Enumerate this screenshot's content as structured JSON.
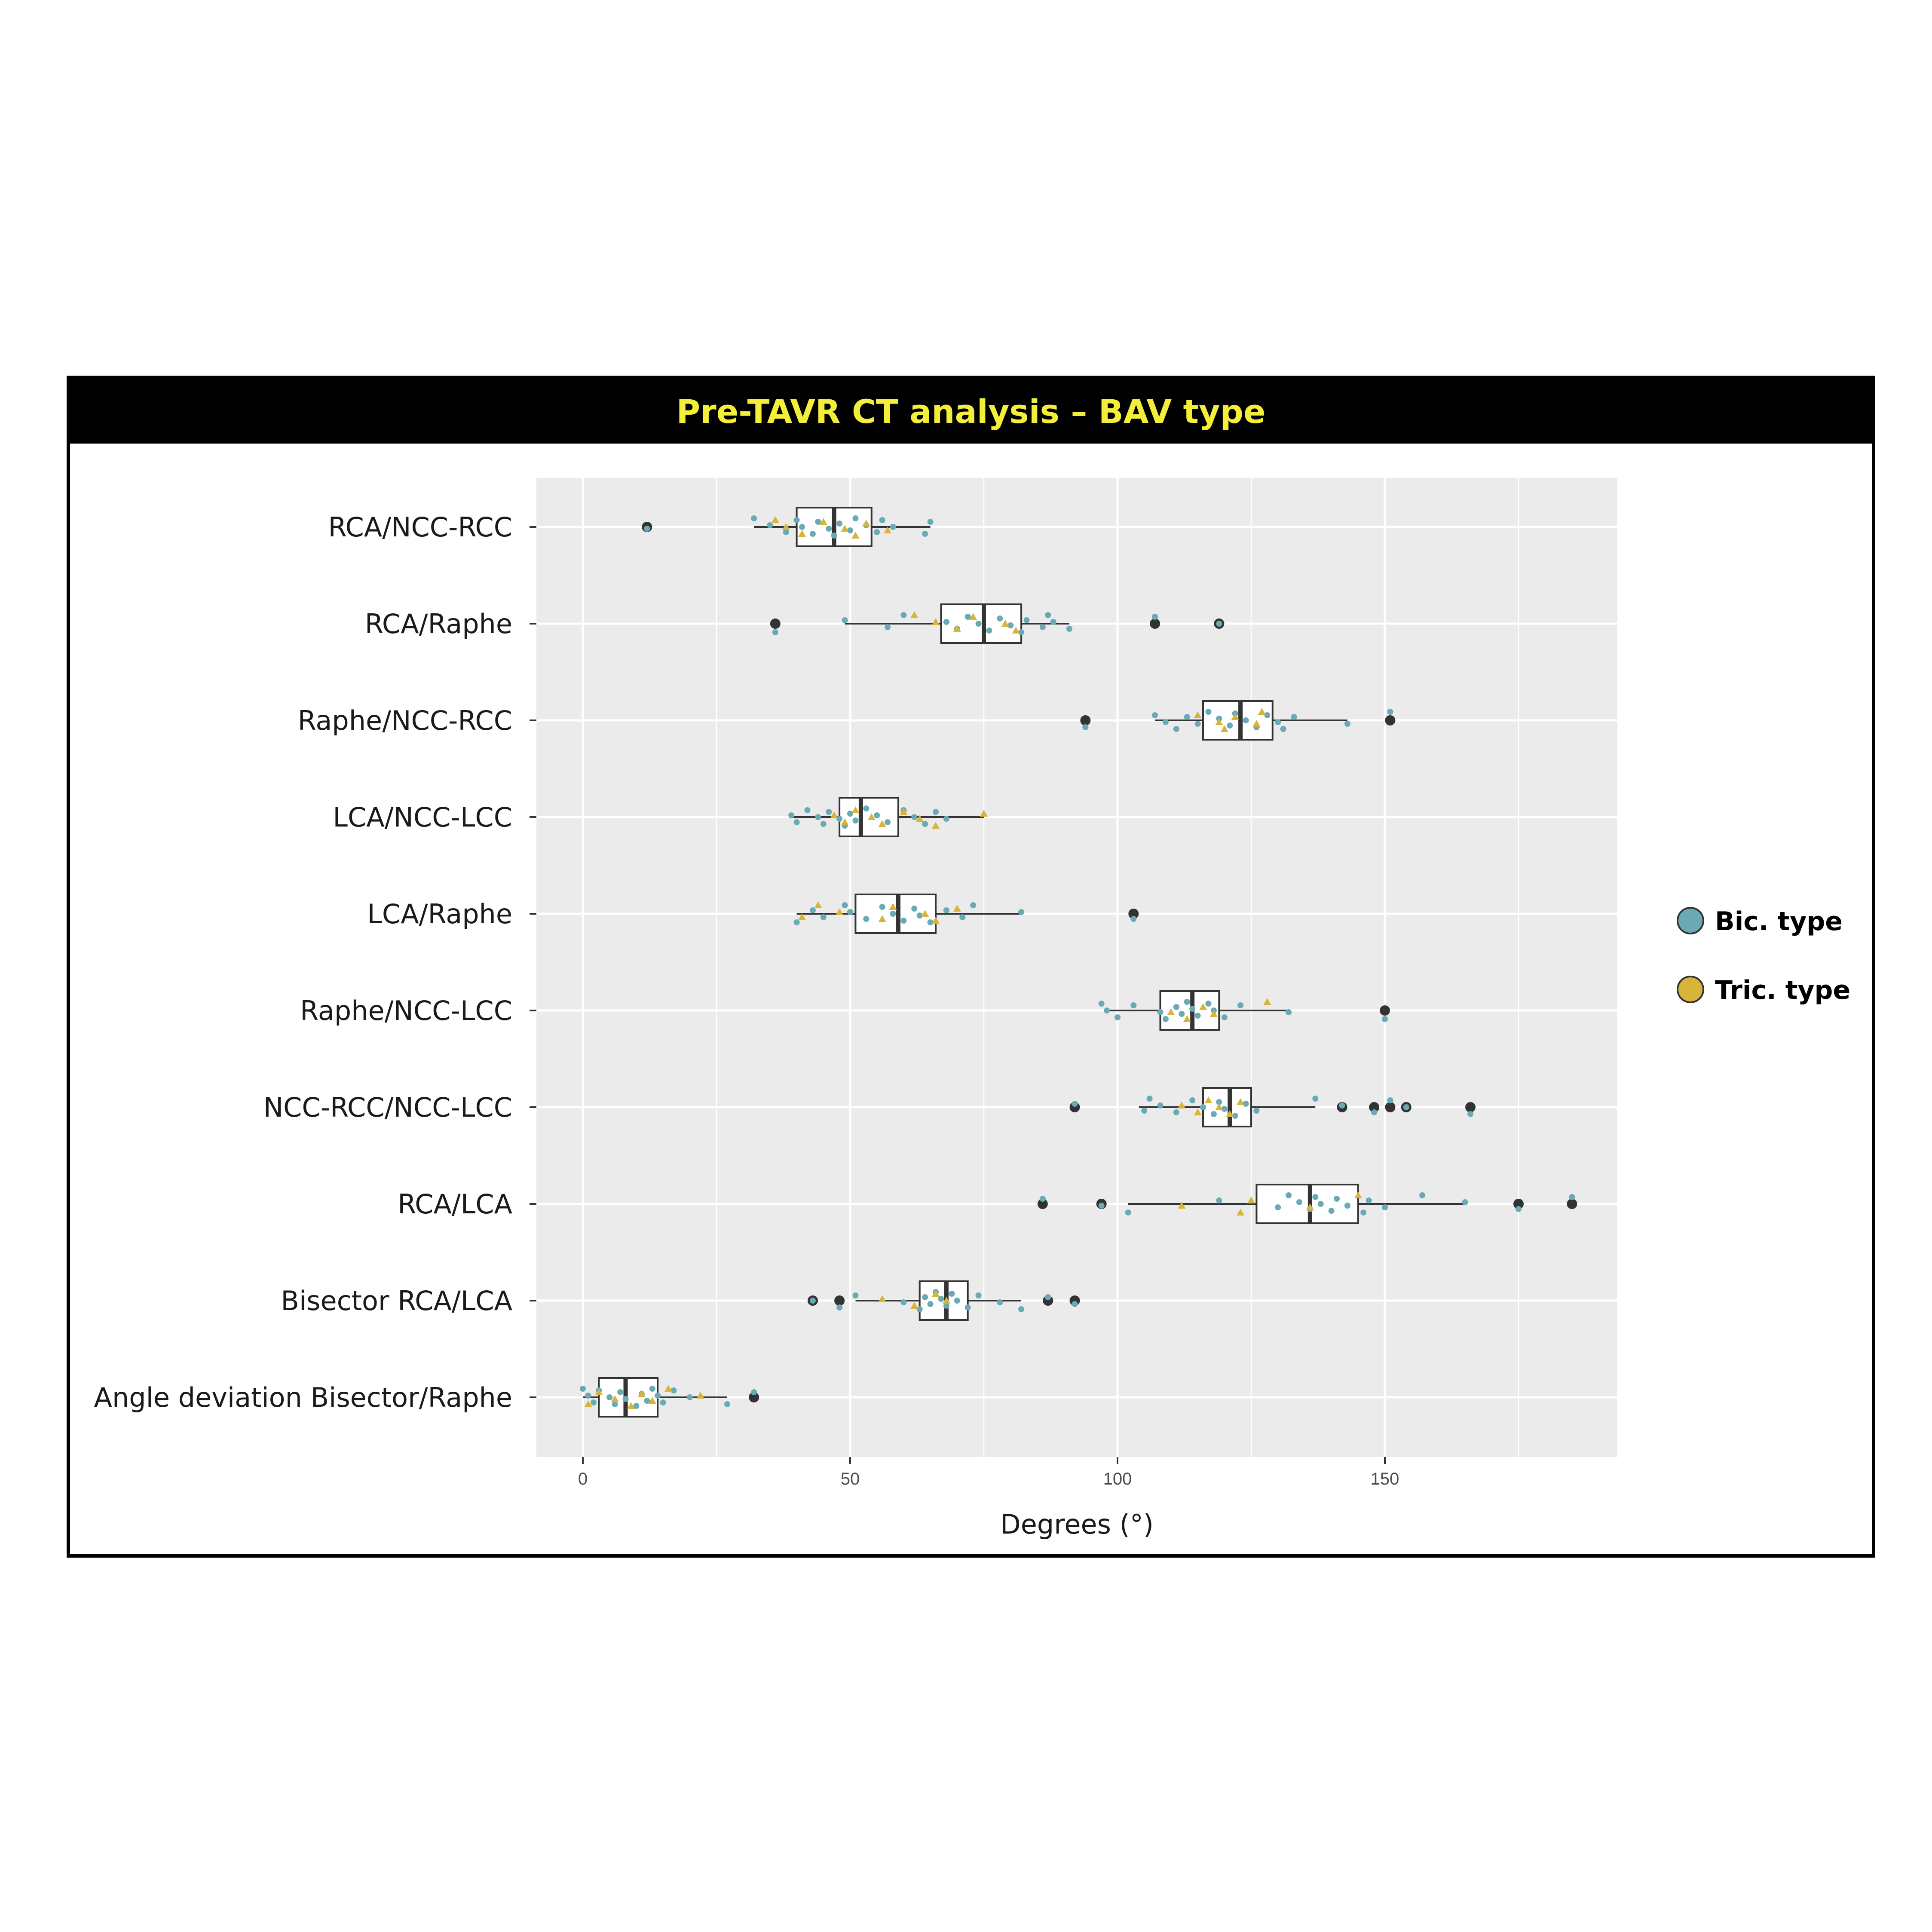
{
  "chart_data": {
    "type": "boxplot",
    "orientation": "horizontal",
    "title": "Pre-TAVR CT analysis – BAV type",
    "xlabel": "Degrees (°)",
    "ylabel": "",
    "xlim": [
      -9,
      193
    ],
    "xticks": [
      0,
      50,
      100,
      150
    ],
    "grid": true,
    "legend_position": "right",
    "legend": [
      {
        "name": "Bic. type",
        "color": "#6aaab5"
      },
      {
        "name": "Tric. type",
        "color": "#d9b43a"
      }
    ],
    "colors": {
      "bic": "#6aaab5",
      "tric": "#d9b43a",
      "outlier": "#333333",
      "panel": "#ebebeb"
    },
    "categories": [
      "RCA/NCC-RCC",
      "RCA/Raphe",
      "Raphe/NCC-RCC",
      "LCA/NCC-LCC",
      "LCA/Raphe",
      "Raphe/NCC-LCC",
      "NCC-RCC/NCC-LCC",
      "RCA/LCA",
      "Bisector RCA/LCA",
      "Angle deviation Bisector/Raphe"
    ],
    "boxes": [
      {
        "category": "RCA/NCC-RCC",
        "whisker_low": 32,
        "q1": 40,
        "median": 47,
        "q3": 54,
        "whisker_high": 65,
        "outliers": [
          12
        ]
      },
      {
        "category": "RCA/Raphe",
        "whisker_low": 49,
        "q1": 67,
        "median": 75,
        "q3": 82,
        "whisker_high": 91,
        "outliers": [
          36,
          107,
          119
        ]
      },
      {
        "category": "Raphe/NCC-RCC",
        "whisker_low": 107,
        "q1": 116,
        "median": 123,
        "q3": 129,
        "whisker_high": 143,
        "outliers": [
          94,
          151
        ]
      },
      {
        "category": "LCA/NCC-LCC",
        "whisker_low": 39,
        "q1": 48,
        "median": 52,
        "q3": 59,
        "whisker_high": 75,
        "outliers": []
      },
      {
        "category": "LCA/Raphe",
        "whisker_low": 40,
        "q1": 51,
        "median": 59,
        "q3": 66,
        "whisker_high": 82,
        "outliers": [
          103
        ]
      },
      {
        "category": "Raphe/NCC-LCC",
        "whisker_low": 98,
        "q1": 108,
        "median": 114,
        "q3": 119,
        "whisker_high": 132,
        "outliers": [
          150
        ]
      },
      {
        "category": "NCC-RCC/NCC-LCC",
        "whisker_low": 104,
        "q1": 116,
        "median": 121,
        "q3": 125,
        "whisker_high": 137,
        "outliers": [
          92,
          142,
          148,
          151,
          154,
          166
        ]
      },
      {
        "category": "RCA/LCA",
        "whisker_low": 102,
        "q1": 126,
        "median": 136,
        "q3": 145,
        "whisker_high": 165,
        "outliers": [
          86,
          97,
          175,
          185
        ]
      },
      {
        "category": "Bisector RCA/LCA",
        "whisker_low": 51,
        "q1": 63,
        "median": 68,
        "q3": 72,
        "whisker_high": 82,
        "outliers": [
          43,
          48,
          87,
          92
        ]
      },
      {
        "category": "Angle deviation Bisector/Raphe",
        "whisker_low": 0,
        "q1": 3,
        "median": 8,
        "q3": 14,
        "whisker_high": 27,
        "outliers": [
          32
        ]
      }
    ],
    "points": {
      "bic": [
        [
          32,
          0
        ],
        [
          35,
          0
        ],
        [
          38,
          0
        ],
        [
          40,
          0
        ],
        [
          41,
          0
        ],
        [
          43,
          0
        ],
        [
          44,
          0
        ],
        [
          46,
          0
        ],
        [
          47,
          0
        ],
        [
          48,
          0
        ],
        [
          50,
          0
        ],
        [
          51,
          0
        ],
        [
          53,
          0
        ],
        [
          55,
          0
        ],
        [
          56,
          0
        ],
        [
          58,
          0
        ],
        [
          64,
          0
        ],
        [
          65,
          0
        ],
        [
          12,
          0
        ],
        [
          36,
          1
        ],
        [
          49,
          1
        ],
        [
          57,
          1
        ],
        [
          60,
          1
        ],
        [
          68,
          1
        ],
        [
          70,
          1
        ],
        [
          72,
          1
        ],
        [
          74,
          1
        ],
        [
          76,
          1
        ],
        [
          78,
          1
        ],
        [
          80,
          1
        ],
        [
          82,
          1
        ],
        [
          83,
          1
        ],
        [
          86,
          1
        ],
        [
          87,
          1
        ],
        [
          88,
          1
        ],
        [
          91,
          1
        ],
        [
          107,
          1
        ],
        [
          119,
          1
        ],
        [
          94,
          2
        ],
        [
          107,
          2
        ],
        [
          109,
          2
        ],
        [
          111,
          2
        ],
        [
          113,
          2
        ],
        [
          115,
          2
        ],
        [
          117,
          2
        ],
        [
          119,
          2
        ],
        [
          121,
          2
        ],
        [
          122,
          2
        ],
        [
          124,
          2
        ],
        [
          126,
          2
        ],
        [
          128,
          2
        ],
        [
          130,
          2
        ],
        [
          131,
          2
        ],
        [
          133,
          2
        ],
        [
          143,
          2
        ],
        [
          151,
          2
        ],
        [
          39,
          3
        ],
        [
          40,
          3
        ],
        [
          42,
          3
        ],
        [
          44,
          3
        ],
        [
          45,
          3
        ],
        [
          46,
          3
        ],
        [
          48,
          3
        ],
        [
          49,
          3
        ],
        [
          50,
          3
        ],
        [
          51,
          3
        ],
        [
          53,
          3
        ],
        [
          55,
          3
        ],
        [
          57,
          3
        ],
        [
          60,
          3
        ],
        [
          62,
          3
        ],
        [
          64,
          3
        ],
        [
          66,
          3
        ],
        [
          68,
          3
        ],
        [
          40,
          4
        ],
        [
          43,
          4
        ],
        [
          45,
          4
        ],
        [
          49,
          4
        ],
        [
          50,
          4
        ],
        [
          53,
          4
        ],
        [
          56,
          4
        ],
        [
          58,
          4
        ],
        [
          60,
          4
        ],
        [
          62,
          4
        ],
        [
          63,
          4
        ],
        [
          65,
          4
        ],
        [
          68,
          4
        ],
        [
          71,
          4
        ],
        [
          73,
          4
        ],
        [
          82,
          4
        ],
        [
          103,
          4
        ],
        [
          97,
          5
        ],
        [
          98,
          5
        ],
        [
          100,
          5
        ],
        [
          103,
          5
        ],
        [
          108,
          5
        ],
        [
          109,
          5
        ],
        [
          111,
          5
        ],
        [
          112,
          5
        ],
        [
          113,
          5
        ],
        [
          114,
          5
        ],
        [
          115,
          5
        ],
        [
          117,
          5
        ],
        [
          118,
          5
        ],
        [
          120,
          5
        ],
        [
          123,
          5
        ],
        [
          132,
          5
        ],
        [
          150,
          5
        ],
        [
          92,
          6
        ],
        [
          105,
          6
        ],
        [
          106,
          6
        ],
        [
          108,
          6
        ],
        [
          111,
          6
        ],
        [
          114,
          6
        ],
        [
          116,
          6
        ],
        [
          118,
          6
        ],
        [
          119,
          6
        ],
        [
          120,
          6
        ],
        [
          122,
          6
        ],
        [
          124,
          6
        ],
        [
          126,
          6
        ],
        [
          137,
          6
        ],
        [
          142,
          6
        ],
        [
          148,
          6
        ],
        [
          151,
          6
        ],
        [
          154,
          6
        ],
        [
          166,
          6
        ],
        [
          86,
          7
        ],
        [
          97,
          7
        ],
        [
          102,
          7
        ],
        [
          119,
          7
        ],
        [
          130,
          7
        ],
        [
          132,
          7
        ],
        [
          134,
          7
        ],
        [
          136,
          7
        ],
        [
          137,
          7
        ],
        [
          138,
          7
        ],
        [
          140,
          7
        ],
        [
          141,
          7
        ],
        [
          143,
          7
        ],
        [
          146,
          7
        ],
        [
          147,
          7
        ],
        [
          150,
          7
        ],
        [
          157,
          7
        ],
        [
          165,
          7
        ],
        [
          175,
          7
        ],
        [
          185,
          7
        ],
        [
          43,
          8
        ],
        [
          48,
          8
        ],
        [
          51,
          8
        ],
        [
          60,
          8
        ],
        [
          63,
          8
        ],
        [
          64,
          8
        ],
        [
          65,
          8
        ],
        [
          66,
          8
        ],
        [
          67,
          8
        ],
        [
          68,
          8
        ],
        [
          69,
          8
        ],
        [
          70,
          8
        ],
        [
          72,
          8
        ],
        [
          74,
          8
        ],
        [
          78,
          8
        ],
        [
          82,
          8
        ],
        [
          87,
          8
        ],
        [
          92,
          8
        ],
        [
          0,
          9
        ],
        [
          1,
          9
        ],
        [
          2,
          9
        ],
        [
          3,
          9
        ],
        [
          5,
          9
        ],
        [
          6,
          9
        ],
        [
          7,
          9
        ],
        [
          8,
          9
        ],
        [
          10,
          9
        ],
        [
          11,
          9
        ],
        [
          12,
          9
        ],
        [
          13,
          9
        ],
        [
          14,
          9
        ],
        [
          15,
          9
        ],
        [
          17,
          9
        ],
        [
          20,
          9
        ],
        [
          27,
          9
        ],
        [
          32,
          9
        ]
      ],
      "tric": [
        [
          36,
          0
        ],
        [
          38,
          0
        ],
        [
          41,
          0
        ],
        [
          45,
          0
        ],
        [
          49,
          0
        ],
        [
          51,
          0
        ],
        [
          53,
          0
        ],
        [
          57,
          0
        ],
        [
          62,
          1
        ],
        [
          66,
          1
        ],
        [
          70,
          1
        ],
        [
          73,
          1
        ],
        [
          79,
          1
        ],
        [
          81,
          1
        ],
        [
          115,
          2
        ],
        [
          119,
          2
        ],
        [
          120,
          2
        ],
        [
          122,
          2
        ],
        [
          126,
          2
        ],
        [
          127,
          2
        ],
        [
          47,
          3
        ],
        [
          49,
          3
        ],
        [
          51,
          3
        ],
        [
          54,
          3
        ],
        [
          56,
          3
        ],
        [
          60,
          3
        ],
        [
          63,
          3
        ],
        [
          66,
          3
        ],
        [
          75,
          3
        ],
        [
          41,
          4
        ],
        [
          44,
          4
        ],
        [
          48,
          4
        ],
        [
          56,
          4
        ],
        [
          58,
          4
        ],
        [
          64,
          4
        ],
        [
          66,
          4
        ],
        [
          70,
          4
        ],
        [
          110,
          5
        ],
        [
          113,
          5
        ],
        [
          116,
          5
        ],
        [
          118,
          5
        ],
        [
          128,
          5
        ],
        [
          112,
          6
        ],
        [
          115,
          6
        ],
        [
          117,
          6
        ],
        [
          119,
          6
        ],
        [
          121,
          6
        ],
        [
          123,
          6
        ],
        [
          112,
          7
        ],
        [
          123,
          7
        ],
        [
          125,
          7
        ],
        [
          136,
          7
        ],
        [
          145,
          7
        ],
        [
          56,
          8
        ],
        [
          62,
          8
        ],
        [
          66,
          8
        ],
        [
          68,
          8
        ],
        [
          1,
          9
        ],
        [
          3,
          9
        ],
        [
          6,
          9
        ],
        [
          9,
          9
        ],
        [
          11,
          9
        ],
        [
          13,
          9
        ],
        [
          16,
          9
        ],
        [
          22,
          9
        ]
      ]
    }
  }
}
